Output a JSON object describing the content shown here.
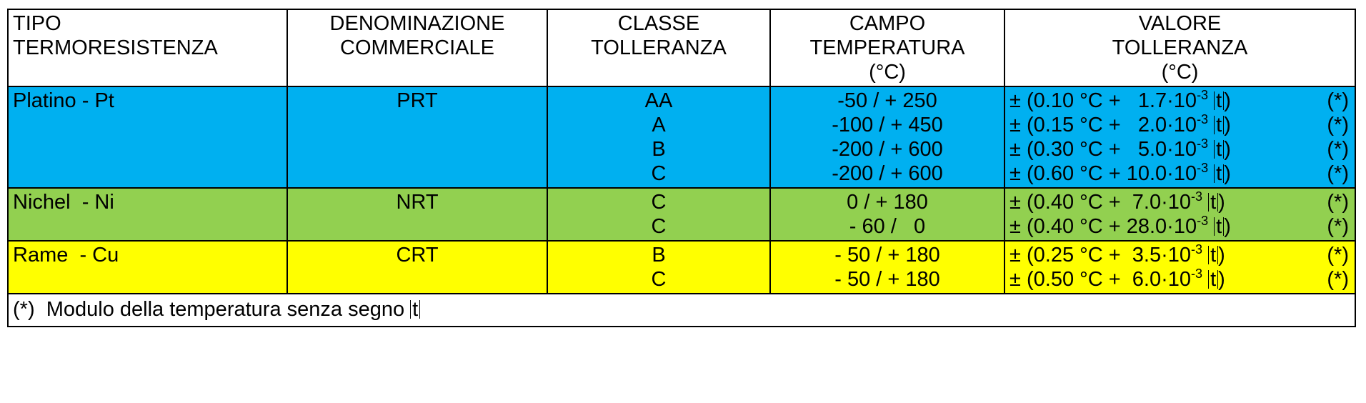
{
  "headers": {
    "col1": [
      "TIPO",
      "TERMORESISTENZA"
    ],
    "col2": [
      "DENOMINAZIONE",
      "COMMERCIALE"
    ],
    "col3": [
      "CLASSE",
      "TOLLERANZA"
    ],
    "col4": [
      "CAMPO",
      "TEMPERATURA",
      "(°C)"
    ],
    "col5": [
      "VALORE",
      "TOLLERANZA",
      "(°C)"
    ]
  },
  "rows": [
    {
      "tipo": "Platino - Pt",
      "denominazione": "PRT",
      "color": "#00b0f0",
      "classi": [
        "AA",
        "A",
        "B",
        "C"
      ],
      "campi": [
        "-50 / + 250",
        "-100 / + 450",
        "-200 / + 600",
        "-200 / + 600"
      ],
      "tolleranze": [
        {
          "pre": "± (0.10 °C +   1.7·10",
          "exp": "-3",
          "abs": "t",
          "post": ")",
          "note": "(*)"
        },
        {
          "pre": "± (0.15 °C +   2.0·10",
          "exp": "-3",
          "abs": "t",
          "post": ")",
          "note": "(*)"
        },
        {
          "pre": "± (0.30 °C +   5.0·10",
          "exp": "-3",
          "abs": "t",
          "post": ")",
          "note": "(*)"
        },
        {
          "pre": "± (0.60 °C + 10.0·10",
          "exp": "-3",
          "abs": "t",
          "post": ")",
          "note": "(*)"
        }
      ]
    },
    {
      "tipo": "Nichel  - Ni",
      "denominazione": "NRT",
      "color": "#92d050",
      "classi": [
        "C",
        "C"
      ],
      "campi": [
        "0 / + 180",
        "- 60 /   0"
      ],
      "tolleranze": [
        {
          "pre": "± (0.40 °C +  7.0·10",
          "exp": "-3",
          "abs": "t",
          "post": ")",
          "note": "(*)"
        },
        {
          "pre": "± (0.40 °C + 28.0·10",
          "exp": "-3",
          "abs": "t",
          "post": ")",
          "note": "(*)"
        }
      ]
    },
    {
      "tipo": "Rame  - Cu",
      "denominazione": "CRT",
      "color": "#ffff00",
      "classi": [
        "B",
        "C"
      ],
      "campi": [
        "- 50 / + 180",
        "- 50 / + 180"
      ],
      "tolleranze": [
        {
          "pre": "± (0.25 °C +  3.5·10",
          "exp": "-3",
          "abs": "t",
          "post": ")",
          "note": "(*)"
        },
        {
          "pre": "± (0.50 °C +  6.0·10",
          "exp": "-3",
          "abs": "t",
          "post": ")",
          "note": "(*)"
        }
      ]
    }
  ],
  "footnote": {
    "text": "(*)  Modulo della temperatura senza segno ",
    "abs": "t"
  }
}
